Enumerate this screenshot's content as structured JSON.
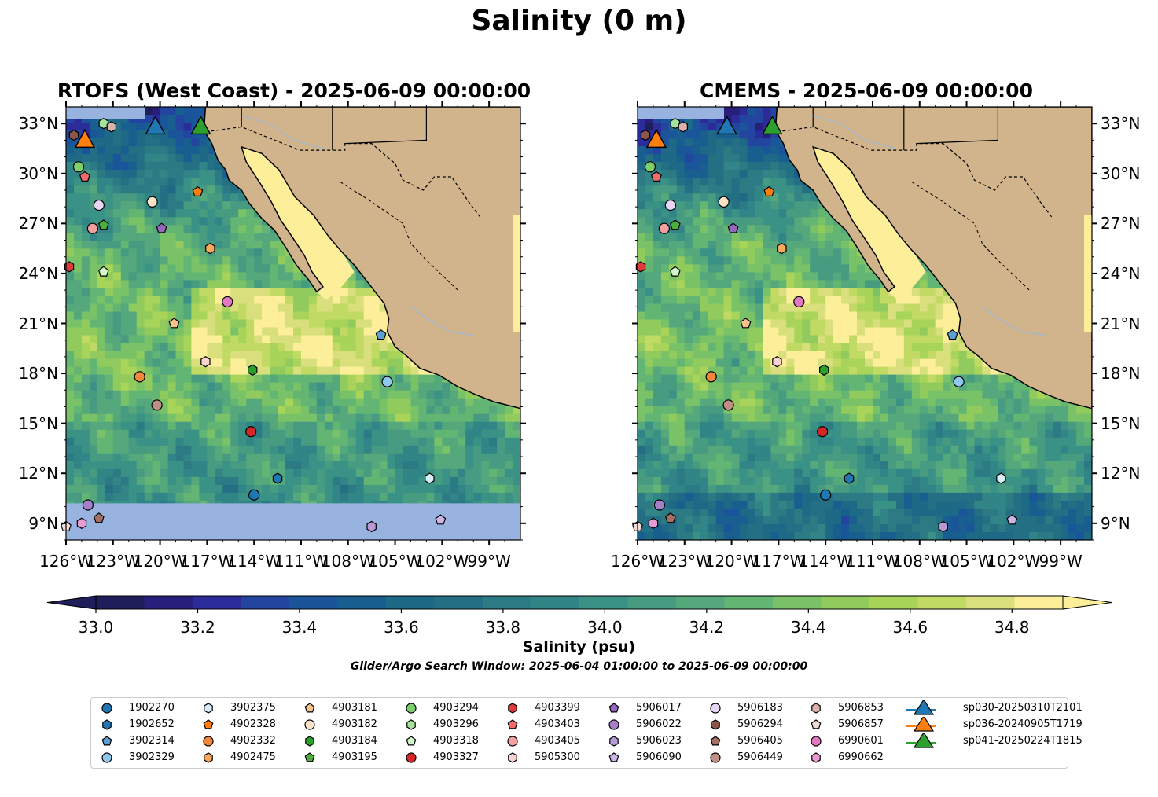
{
  "figure": {
    "title": "Salinity (0 m)",
    "search_window": "Glider/Argo Search Window: 2025-06-04 01:00:00 to 2025-06-09 00:00:00"
  },
  "colors": {
    "land": "#d2b48c",
    "no_data": "#98b3e0",
    "borders": "#000000",
    "rivers": "#a0b8d0",
    "colormap": [
      "#1f1d5a",
      "#281e7c",
      "#2b2c99",
      "#23449f",
      "#1a559a",
      "#185f8f",
      "#1d6986",
      "#246f84",
      "#2b7a84",
      "#328586",
      "#3a9185",
      "#479b80",
      "#55a77c",
      "#63b573",
      "#7ac267",
      "#91cb5e",
      "#a8d45a",
      "#c0da63",
      "#d8df7c",
      "#fdef9a"
    ]
  },
  "chart_data": [
    {
      "type": "heatmap",
      "title": "RTOFS (West Coast) - 2025-06-09 00:00:00",
      "x_ticks": [
        "126°W",
        "123°W",
        "120°W",
        "117°W",
        "114°W",
        "111°W",
        "108°W",
        "105°W",
        "102°W",
        "99°W"
      ],
      "y_ticks": [
        "33°N",
        "30°N",
        "27°N",
        "24°N",
        "21°N",
        "18°N",
        "15°N",
        "12°N",
        "9°N"
      ],
      "xlim": [
        -126,
        -97
      ],
      "ylim": [
        8,
        34
      ],
      "y_tick_side": "left",
      "no_data_below_lat": 10.2
    },
    {
      "type": "heatmap",
      "title": "CMEMS - 2025-06-09 00:00:00",
      "x_ticks": [
        "126°W",
        "123°W",
        "120°W",
        "117°W",
        "114°W",
        "111°W",
        "108°W",
        "105°W",
        "102°W",
        "99°W"
      ],
      "y_ticks": [
        "33°N",
        "30°N",
        "27°N",
        "24°N",
        "21°N",
        "18°N",
        "15°N",
        "12°N",
        "9°N"
      ],
      "xlim": [
        -126,
        -97
      ],
      "ylim": [
        8,
        34
      ],
      "y_tick_side": "right"
    }
  ],
  "colorbar": {
    "label": "Salinity (psu)",
    "ticks": [
      "33.0",
      "33.2",
      "33.4",
      "33.6",
      "33.8",
      "34.0",
      "34.2",
      "34.4",
      "34.6",
      "34.8"
    ],
    "range": [
      32.9,
      34.9
    ],
    "extend": "both"
  },
  "floats": [
    {
      "id": "1902270",
      "marker": "circle",
      "color": "#1f77b4",
      "lon": -114.0,
      "lat": 10.7
    },
    {
      "id": "1902652",
      "marker": "hexagon",
      "color": "#1f77b4",
      "lon": -112.5,
      "lat": 11.7
    },
    {
      "id": "3902314",
      "marker": "pentagon",
      "color": "#5aa0d6",
      "lon": -105.9,
      "lat": 20.3
    },
    {
      "id": "3902329",
      "marker": "circle",
      "color": "#8fc8ee",
      "lon": -105.5,
      "lat": 17.5
    },
    {
      "id": "3902375",
      "marker": "hexagon",
      "color": "#d6ecf7",
      "lon": -102.8,
      "lat": 11.7
    },
    {
      "id": "4902328",
      "marker": "pentagon",
      "color": "#ff7f0e",
      "lon": -117.6,
      "lat": 28.9
    },
    {
      "id": "4902332",
      "marker": "circle",
      "color": "#f2883a",
      "lon": -121.3,
      "lat": 17.8
    },
    {
      "id": "4902475",
      "marker": "hexagon",
      "color": "#f6a85c",
      "lon": -116.8,
      "lat": 25.5
    },
    {
      "id": "4903181",
      "marker": "pentagon",
      "color": "#fbc38c",
      "lon": -119.1,
      "lat": 21.0
    },
    {
      "id": "4903182",
      "marker": "circle",
      "color": "#fde3c8",
      "lon": -120.5,
      "lat": 28.3
    },
    {
      "id": "4903184",
      "marker": "hexagon",
      "color": "#2ca02c",
      "lon": -114.1,
      "lat": 18.2
    },
    {
      "id": "4903195",
      "marker": "pentagon",
      "color": "#4caf3c",
      "lon": -123.6,
      "lat": 26.9
    },
    {
      "id": "4903294",
      "marker": "circle",
      "color": "#7ed06c",
      "lon": -125.2,
      "lat": 30.4
    },
    {
      "id": "4903296",
      "marker": "hexagon",
      "color": "#a6e39a",
      "lon": -123.6,
      "lat": 33.0
    },
    {
      "id": "4903318",
      "marker": "pentagon",
      "color": "#d3f5cc",
      "lon": -123.6,
      "lat": 24.1
    },
    {
      "id": "4903327",
      "marker": "circle",
      "color": "#d62728",
      "lon": -114.2,
      "lat": 14.5
    },
    {
      "id": "4903399",
      "marker": "hexagon",
      "color": "#e0393a",
      "lon": -125.8,
      "lat": 24.4
    },
    {
      "id": "4903403",
      "marker": "pentagon",
      "color": "#f06b6b",
      "lon": -124.8,
      "lat": 29.8
    },
    {
      "id": "4903405",
      "marker": "circle",
      "color": "#f5a0a0",
      "lon": -124.3,
      "lat": 26.7
    },
    {
      "id": "5905300",
      "marker": "hexagon",
      "color": "#fbd2d2",
      "lon": -117.1,
      "lat": 18.7
    },
    {
      "id": "5906017",
      "marker": "pentagon",
      "color": "#9467bd",
      "lon": -119.9,
      "lat": 26.7
    },
    {
      "id": "5906022",
      "marker": "circle",
      "color": "#a67fc9",
      "lon": -124.6,
      "lat": 10.1
    },
    {
      "id": "5906023",
      "marker": "hexagon",
      "color": "#b899d6",
      "lon": -106.5,
      "lat": 8.8
    },
    {
      "id": "5906090",
      "marker": "pentagon",
      "color": "#cdb5e6",
      "lon": -102.1,
      "lat": 9.2
    },
    {
      "id": "5906183",
      "marker": "circle",
      "color": "#e5d6f5",
      "lon": -123.9,
      "lat": 28.1
    },
    {
      "id": "5906294",
      "marker": "hexagon",
      "color": "#8c564b",
      "lon": -125.5,
      "lat": 32.3
    },
    {
      "id": "5906405",
      "marker": "pentagon",
      "color": "#a66f63",
      "lon": -123.9,
      "lat": 9.3
    },
    {
      "id": "5906449",
      "marker": "circle",
      "color": "#c08e84",
      "lon": -120.2,
      "lat": 16.1
    },
    {
      "id": "5906853",
      "marker": "hexagon",
      "color": "#dcb3aa",
      "lon": -123.1,
      "lat": 32.8
    },
    {
      "id": "5906857",
      "marker": "pentagon",
      "color": "#f3dcd6",
      "lon": -126.0,
      "lat": 8.8
    },
    {
      "id": "6990601",
      "marker": "circle",
      "color": "#e377c2",
      "lon": -115.7,
      "lat": 22.3
    },
    {
      "id": "6990662",
      "marker": "hexagon",
      "color": "#e89bd3",
      "lon": -125.0,
      "lat": 9.0
    }
  ],
  "gliders": [
    {
      "id": "sp030-20250310T2101",
      "color": "#1f77b4",
      "lon": -120.3,
      "lat": 32.8
    },
    {
      "id": "sp036-20240905T1719",
      "color": "#ff7f0e",
      "lon": -124.8,
      "lat": 32.0
    },
    {
      "id": "sp041-20250224T1815",
      "color": "#2ca02c",
      "lon": -117.4,
      "lat": 32.8
    }
  ]
}
